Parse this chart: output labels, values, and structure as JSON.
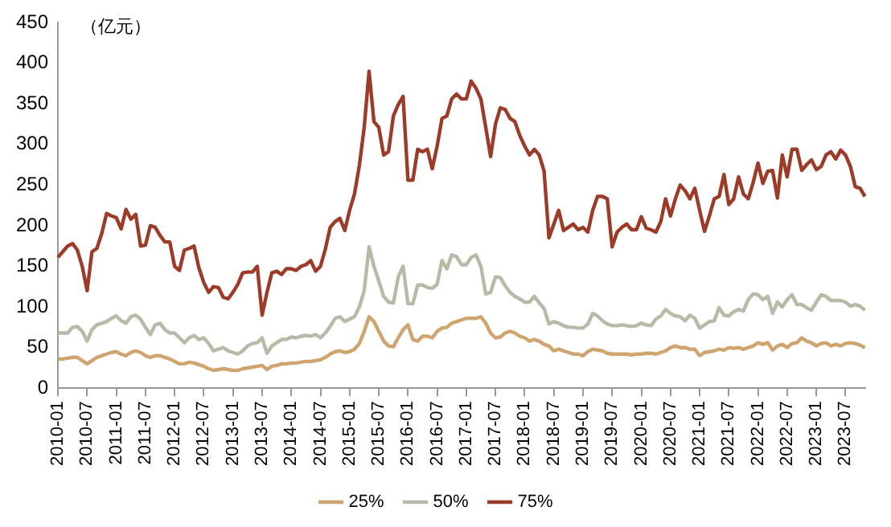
{
  "chart_data": {
    "type": "line",
    "ylabel": "（亿元）",
    "legend": "bottom",
    "marker": "none",
    "line_style": "solid",
    "categories": [
      "2010-01",
      null,
      null,
      null,
      null,
      null,
      "2010-07",
      null,
      null,
      null,
      null,
      null,
      "2011-01",
      null,
      null,
      null,
      null,
      null,
      "2011-07",
      null,
      null,
      null,
      null,
      null,
      "2012-01",
      null,
      null,
      null,
      null,
      null,
      "2012-07",
      null,
      null,
      null,
      null,
      null,
      "2013-01",
      null,
      null,
      null,
      null,
      null,
      "2013-07",
      null,
      null,
      null,
      null,
      null,
      "2014-01",
      null,
      null,
      null,
      null,
      null,
      "2014-07",
      null,
      null,
      null,
      null,
      null,
      "2015-01",
      null,
      null,
      null,
      null,
      null,
      "2015-07",
      null,
      null,
      null,
      null,
      null,
      "2016-01",
      null,
      null,
      null,
      null,
      null,
      "2016-07",
      null,
      null,
      null,
      null,
      null,
      "2017-01",
      null,
      null,
      null,
      null,
      null,
      "2017-07",
      null,
      null,
      null,
      null,
      null,
      "2018-01",
      null,
      null,
      null,
      null,
      null,
      "2018-07",
      null,
      null,
      null,
      null,
      null,
      "2019-01",
      null,
      null,
      null,
      null,
      null,
      "2019-07",
      null,
      null,
      null,
      null,
      null,
      "2020-01",
      null,
      null,
      null,
      null,
      null,
      "2020-07",
      null,
      null,
      null,
      null,
      null,
      "2021-01",
      null,
      null,
      null,
      null,
      null,
      "2021-07",
      null,
      null,
      null,
      null,
      null,
      "2022-01",
      null,
      null,
      null,
      null,
      null,
      "2022-07",
      null,
      null,
      null,
      null,
      null,
      "2023-01",
      null,
      null,
      null,
      null,
      null,
      "2023-07",
      null,
      null,
      null,
      null
    ],
    "ylim": [
      0,
      450
    ],
    "yticks": [
      0,
      50,
      100,
      150,
      200,
      250,
      300,
      350,
      400,
      450
    ],
    "series": [
      {
        "name": "25%",
        "color": "#cfa46e",
        "values": [
          36,
          36,
          37,
          38,
          38,
          34,
          30,
          34,
          38,
          40,
          42,
          44,
          45,
          42,
          40,
          44,
          46,
          44,
          40,
          38,
          40,
          40,
          38,
          36,
          33,
          30,
          30,
          32,
          31,
          29,
          27,
          24,
          22,
          23,
          24,
          23,
          22,
          22,
          24,
          25,
          26,
          27,
          28,
          23,
          27,
          28,
          30,
          30,
          31,
          31,
          32,
          33,
          33,
          34,
          35,
          38,
          42,
          45,
          46,
          44,
          45,
          48,
          55,
          70,
          88,
          82,
          70,
          58,
          52,
          51,
          62,
          72,
          78,
          60,
          58,
          64,
          64,
          62,
          70,
          74,
          75,
          80,
          82,
          84,
          86,
          86,
          86,
          88,
          80,
          68,
          62,
          63,
          68,
          70,
          68,
          64,
          62,
          58,
          60,
          58,
          54,
          52,
          46,
          48,
          46,
          44,
          42,
          42,
          40,
          45,
          48,
          47,
          46,
          43,
          42,
          42,
          42,
          42,
          41,
          42,
          42,
          43,
          43,
          42,
          44,
          46,
          50,
          52,
          50,
          50,
          48,
          48,
          40,
          44,
          45,
          46,
          48,
          47,
          50,
          49,
          50,
          48,
          50,
          52,
          56,
          54,
          56,
          47,
          52,
          54,
          50,
          55,
          56,
          62,
          58,
          56,
          52,
          55,
          56,
          52,
          54,
          52,
          55,
          56,
          55,
          53,
          50
        ]
      },
      {
        "name": "50%",
        "color": "#b8b9a6",
        "values": [
          68,
          68,
          68,
          75,
          76,
          70,
          58,
          72,
          78,
          80,
          82,
          86,
          89,
          83,
          80,
          88,
          90,
          85,
          75,
          66,
          78,
          80,
          72,
          68,
          68,
          62,
          56,
          62,
          65,
          60,
          62,
          55,
          46,
          48,
          50,
          46,
          44,
          42,
          46,
          52,
          55,
          56,
          62,
          43,
          52,
          56,
          60,
          60,
          63,
          62,
          64,
          65,
          64,
          66,
          62,
          68,
          76,
          86,
          88,
          82,
          85,
          88,
          100,
          120,
          174,
          150,
          132,
          113,
          106,
          105,
          137,
          150,
          104,
          104,
          127,
          127,
          124,
          123,
          128,
          157,
          147,
          164,
          162,
          152,
          152,
          161,
          164,
          150,
          116,
          118,
          137,
          136,
          126,
          118,
          113,
          110,
          106,
          106,
          113,
          105,
          98,
          79,
          82,
          80,
          77,
          75,
          75,
          74,
          74,
          79,
          92,
          89,
          83,
          79,
          77,
          77,
          78,
          77,
          76,
          77,
          80,
          78,
          77,
          85,
          89,
          97,
          92,
          89,
          88,
          83,
          90,
          86,
          74,
          78,
          82,
          83,
          99,
          90,
          89,
          94,
          97,
          95,
          109,
          116,
          115,
          109,
          113,
          92,
          106,
          100,
          109,
          115,
          103,
          103,
          99,
          96,
          106,
          115,
          113,
          108,
          108,
          108,
          106,
          101,
          103,
          101,
          96
        ]
      },
      {
        "name": "75%",
        "color": "#9c3b27",
        "values": [
          161,
          168,
          175,
          178,
          170,
          150,
          120,
          168,
          172,
          190,
          215,
          212,
          210,
          196,
          220,
          208,
          214,
          175,
          176,
          200,
          198,
          188,
          180,
          180,
          150,
          145,
          170,
          172,
          175,
          148,
          130,
          118,
          125,
          124,
          112,
          110,
          118,
          128,
          142,
          143,
          143,
          150,
          90,
          118,
          142,
          144,
          140,
          147,
          147,
          145,
          150,
          152,
          157,
          144,
          150,
          171,
          198,
          205,
          209,
          194,
          219,
          239,
          274,
          321,
          390,
          328,
          321,
          287,
          291,
          335,
          349,
          359,
          256,
          256,
          294,
          291,
          294,
          270,
          298,
          332,
          335,
          356,
          362,
          356,
          356,
          378,
          369,
          356,
          321,
          285,
          325,
          345,
          343,
          332,
          328,
          311,
          298,
          287,
          294,
          287,
          267,
          185,
          202,
          219,
          194,
          198,
          202,
          195,
          198,
          192,
          219,
          236,
          236,
          233,
          174,
          192,
          198,
          202,
          195,
          195,
          211,
          197,
          195,
          192,
          205,
          233,
          212,
          233,
          250,
          243,
          233,
          246,
          219,
          193,
          212,
          233,
          236,
          263,
          226,
          233,
          260,
          239,
          233,
          253,
          277,
          252,
          267,
          268,
          234,
          287,
          260,
          294,
          294,
          268,
          275,
          281,
          269,
          273,
          287,
          291,
          282,
          293,
          287,
          273,
          248,
          246,
          236
        ]
      }
    ]
  }
}
